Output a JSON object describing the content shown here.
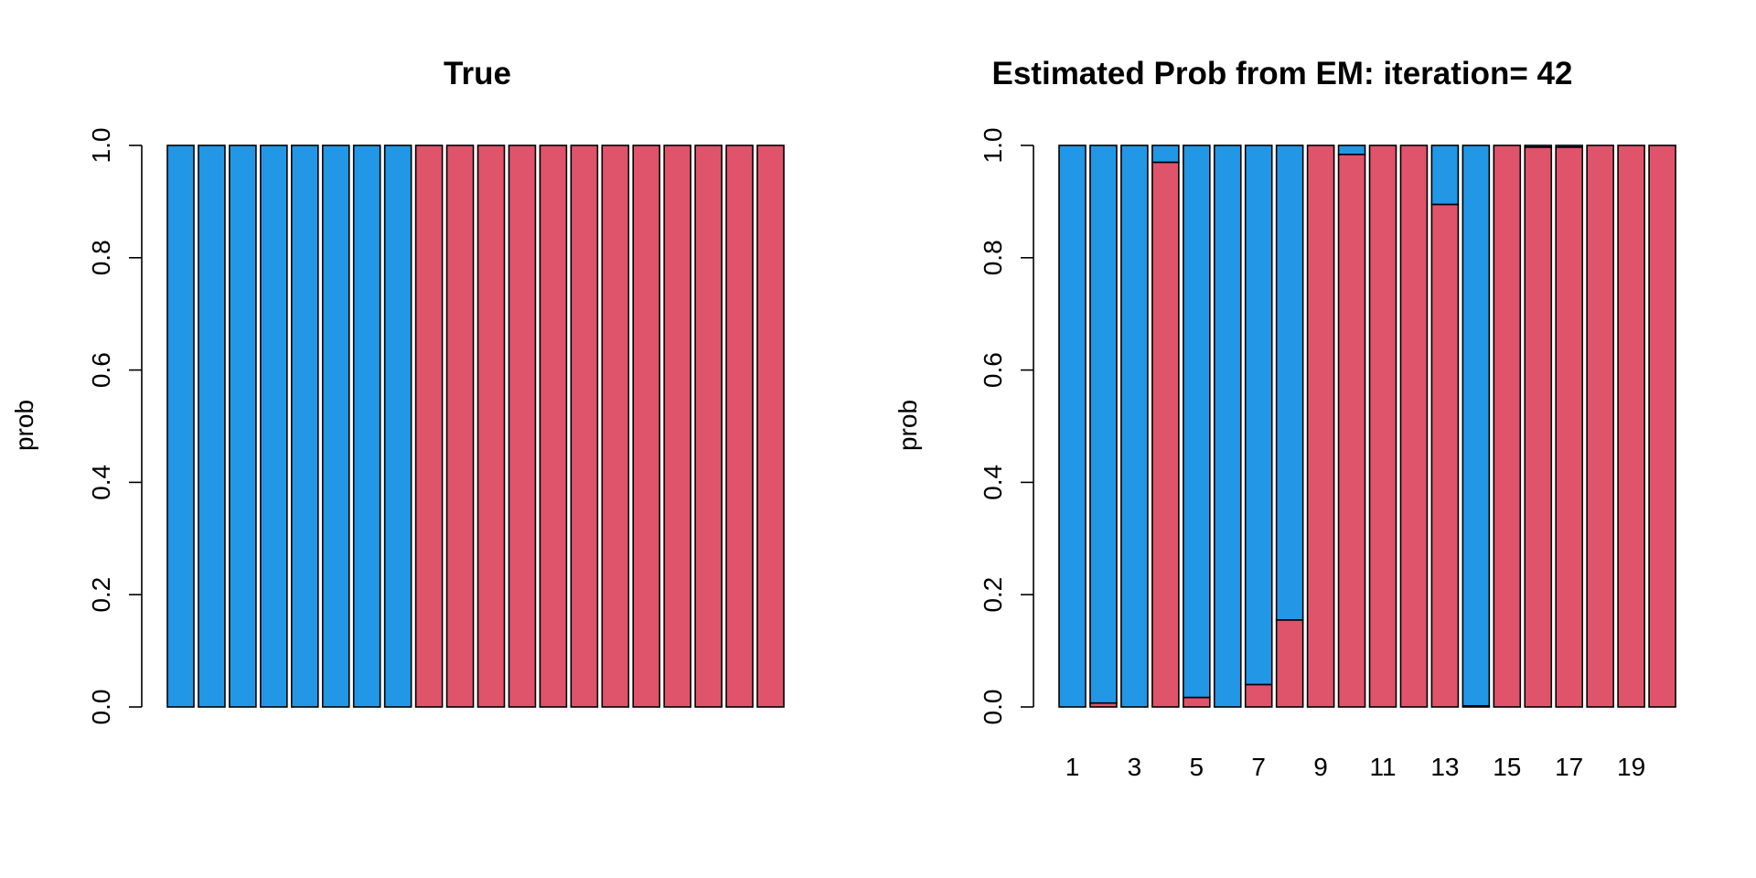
{
  "colors": {
    "group1": "#2297E6",
    "group2": "#DF536B"
  },
  "chart_data": [
    {
      "type": "bar",
      "stacked": true,
      "title": "True",
      "xlabel": "",
      "ylabel": "prob",
      "ylim": [
        0,
        1
      ],
      "yticks": [
        "0.0",
        "0.2",
        "0.4",
        "0.6",
        "0.8",
        "1.0"
      ],
      "xticks_shown": false,
      "categories": [
        "1",
        "2",
        "3",
        "4",
        "5",
        "6",
        "7",
        "8",
        "9",
        "10",
        "11",
        "12",
        "13",
        "14",
        "15",
        "16",
        "17",
        "18",
        "19",
        "20"
      ],
      "series": [
        {
          "color": "#DF536B",
          "values": [
            0,
            0,
            0,
            0,
            0,
            0,
            0,
            0,
            1,
            1,
            1,
            1,
            1,
            1,
            1,
            1,
            1,
            1,
            1,
            1
          ]
        },
        {
          "color": "#2297E6",
          "values": [
            1,
            1,
            1,
            1,
            1,
            1,
            1,
            1,
            0,
            0,
            0,
            0,
            0,
            0,
            0,
            0,
            0,
            0,
            0,
            0
          ]
        }
      ]
    },
    {
      "type": "bar",
      "stacked": true,
      "title": "Estimated Prob from EM: iteration= 42",
      "xlabel": "",
      "ylabel": "prob",
      "ylim": [
        0,
        1
      ],
      "yticks": [
        "0.0",
        "0.2",
        "0.4",
        "0.6",
        "0.8",
        "1.0"
      ],
      "xticks_shown": true,
      "xtick_labels": [
        "1",
        "3",
        "5",
        "7",
        "9",
        "11",
        "13",
        "15",
        "17",
        "19"
      ],
      "categories": [
        "1",
        "2",
        "3",
        "4",
        "5",
        "6",
        "7",
        "8",
        "9",
        "10",
        "11",
        "12",
        "13",
        "14",
        "15",
        "16",
        "17",
        "18",
        "19",
        "20"
      ],
      "series": [
        {
          "color": "#DF536B",
          "values": [
            0,
            0.007,
            0,
            0.97,
            0.017,
            0,
            0.04,
            0.155,
            1,
            0.984,
            1,
            1,
            0.895,
            0.002,
            1,
            0.997,
            0.997,
            1,
            1,
            1
          ]
        },
        {
          "color": "#2297E6",
          "values": [
            1,
            0.993,
            1,
            0.03,
            0.983,
            1,
            0.96,
            0.845,
            0,
            0.016,
            0,
            0,
            0.105,
            0.998,
            0,
            0.003,
            0.003,
            0,
            0,
            0
          ]
        }
      ]
    }
  ]
}
